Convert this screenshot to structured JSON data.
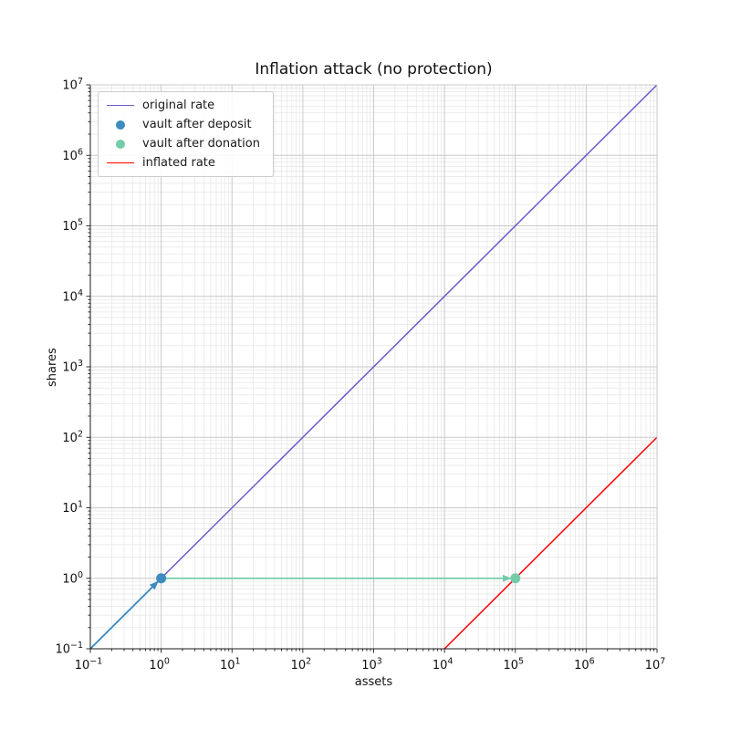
{
  "chart_data": {
    "type": "line",
    "title": "Inflation attack (no protection)",
    "xlabel": "assets",
    "ylabel": "shares",
    "xscale": "log",
    "yscale": "log",
    "xlim": [
      0.1,
      10000000
    ],
    "ylim": [
      0.1,
      10000000
    ],
    "x_tick_exponents": [
      -1,
      0,
      1,
      2,
      3,
      4,
      5,
      6,
      7
    ],
    "y_tick_exponents": [
      -1,
      0,
      1,
      2,
      3,
      4,
      5,
      6,
      7
    ],
    "grid": {
      "show": true,
      "major_color": "#c9c9c9",
      "minor_color": "#e5e5e5"
    },
    "series": [
      {
        "name": "original rate",
        "kind": "line",
        "color": "#6a5acd",
        "width": 1.5,
        "points": [
          [
            0.1,
            0.1
          ],
          [
            10000000,
            10000000
          ]
        ]
      },
      {
        "name": "inflated rate",
        "kind": "line",
        "color": "#ff0000",
        "width": 1.5,
        "points": [
          [
            10000,
            0.1
          ],
          [
            10000000,
            100
          ]
        ]
      },
      {
        "name": "deposit transition arrow",
        "kind": "arrow",
        "color": "#3d8bbf",
        "width": 1.8,
        "points": [
          [
            0.1,
            0.1
          ],
          [
            1,
            1
          ]
        ]
      },
      {
        "name": "donation transition arrow",
        "kind": "arrow",
        "color": "#74cbaa",
        "width": 1.8,
        "points": [
          [
            1,
            1
          ],
          [
            100000,
            1
          ]
        ]
      },
      {
        "name": "vault after deposit",
        "kind": "scatter",
        "color": "#3d8bbf",
        "marker_radius": 5.5,
        "points": [
          [
            1,
            1
          ]
        ]
      },
      {
        "name": "vault after donation",
        "kind": "scatter",
        "color": "#74cbaa",
        "marker_radius": 5.5,
        "points": [
          [
            100000,
            1
          ]
        ]
      }
    ],
    "legend": {
      "position": "upper-left",
      "entries": [
        {
          "label": "original rate",
          "swatch": "line",
          "color": "#6a5acd"
        },
        {
          "label": "vault after deposit",
          "swatch": "dot",
          "color": "#3d8bbf"
        },
        {
          "label": "vault after donation",
          "swatch": "dot",
          "color": "#74cbaa"
        },
        {
          "label": "inflated rate",
          "swatch": "line",
          "color": "#ff0000"
        }
      ]
    }
  }
}
